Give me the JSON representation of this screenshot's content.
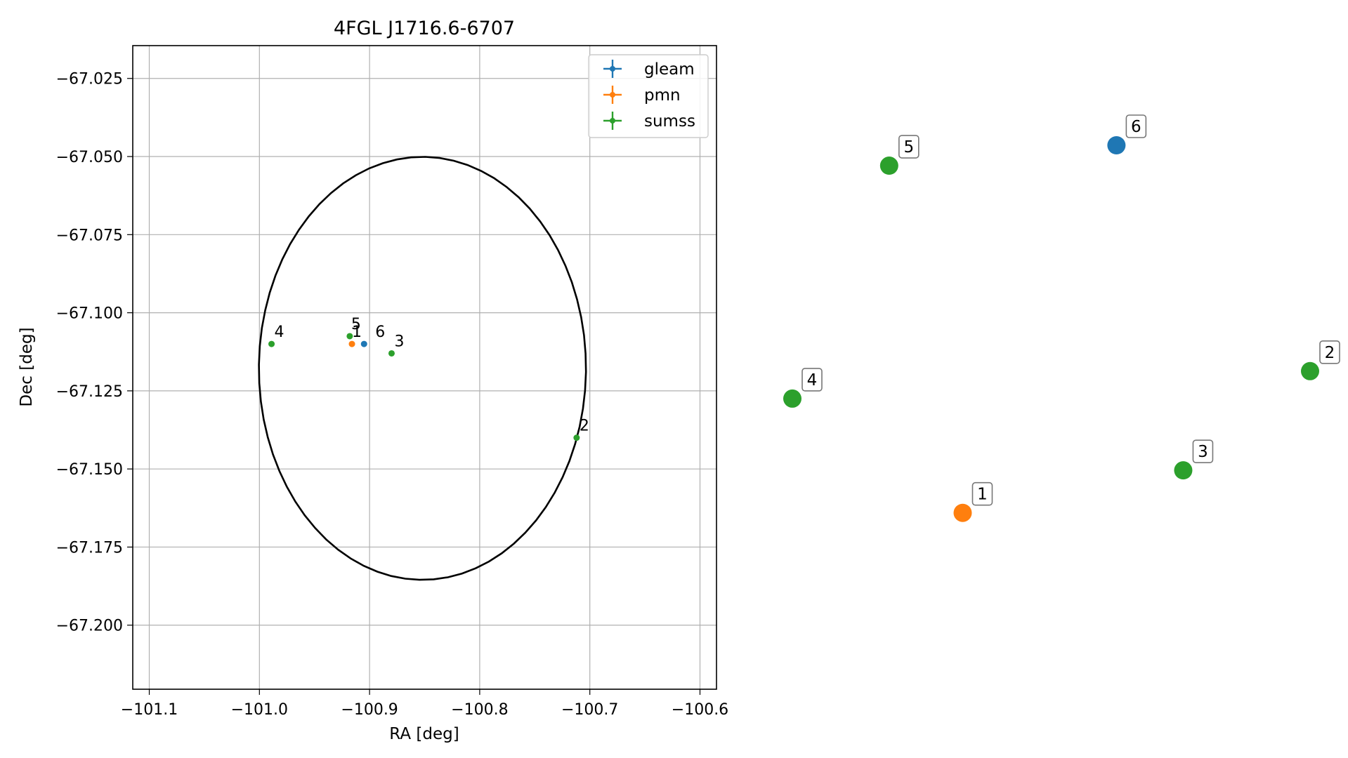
{
  "colors": {
    "gleam": "#1f77b4",
    "pmn": "#ff7f0e",
    "sumss": "#2ca02c",
    "grid": "#b0b0b0",
    "ellipse": "#000000"
  },
  "chart_data": [
    {
      "type": "scatter",
      "title": "4FGL J1716.6-6707",
      "xlabel": "RA [deg]",
      "ylabel": "Dec [deg]",
      "xlim": [
        -101.115,
        -100.585
      ],
      "ylim": [
        -67.2205,
        -67.0145
      ],
      "grid": true,
      "legend_position": "top-right",
      "legend": [
        "gleam",
        "pmn",
        "sumss"
      ],
      "x_ticks": [
        -101.1,
        -101.0,
        -100.9,
        -100.8,
        -100.7,
        -100.6
      ],
      "x_tick_labels": [
        "−101.1",
        "−101.0",
        "−100.9",
        "−100.8",
        "−100.7",
        "−100.6"
      ],
      "y_ticks": [
        -67.025,
        -67.05,
        -67.075,
        -67.1,
        -67.125,
        -67.15,
        -67.175,
        -67.2
      ],
      "y_tick_labels": [
        "−67.025",
        "−67.050",
        "−67.075",
        "−67.100",
        "−67.125",
        "−67.150",
        "−67.175",
        "−67.200"
      ],
      "ellipse": {
        "ra_center": -100.852,
        "dec_center": -67.1178,
        "ra_semi_axis": 0.1485,
        "dec_semi_axis": 0.0677,
        "tilt_deg": 6
      },
      "series": [
        {
          "name": "gleam",
          "points": [
            {
              "label": "6",
              "ra": -100.905,
              "dec": -67.11
            }
          ]
        },
        {
          "name": "pmn",
          "points": [
            {
              "label": "1",
              "ra": -100.916,
              "dec": -67.11
            }
          ]
        },
        {
          "name": "sumss",
          "points": [
            {
              "label": "2",
              "ra": -100.712,
              "dec": -67.14
            },
            {
              "label": "3",
              "ra": -100.88,
              "dec": -67.113
            },
            {
              "label": "4",
              "ra": -100.989,
              "dec": -67.11
            },
            {
              "label": "5",
              "ra": -100.918,
              "dec": -67.1075
            }
          ]
        }
      ]
    },
    {
      "type": "scatter",
      "points": [
        {
          "label": "1",
          "series": "pmn",
          "x": 0.329,
          "y": 0.17
        },
        {
          "label": "2",
          "series": "sumss",
          "x": 1.0,
          "y": 0.49
        },
        {
          "label": "3",
          "series": "sumss",
          "x": 0.755,
          "y": 0.266
        },
        {
          "label": "4",
          "series": "sumss",
          "x": 0.0,
          "y": 0.428
        },
        {
          "label": "5",
          "series": "sumss",
          "x": 0.187,
          "y": 0.954
        },
        {
          "label": "6",
          "series": "gleam",
          "x": 0.626,
          "y": 1.0
        }
      ]
    }
  ]
}
